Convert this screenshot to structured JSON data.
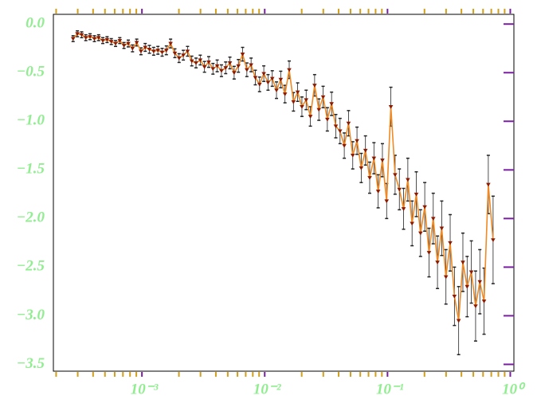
{
  "chart_data": {
    "type": "errorline",
    "x": [
      0.000275,
      0.000298,
      0.000323,
      0.000349,
      0.000378,
      0.00041,
      0.000444,
      0.00048,
      0.00052,
      0.000563,
      0.00061,
      0.00066,
      0.000714,
      0.000774,
      0.000838,
      0.000907,
      0.000982,
      0.001063,
      0.001151,
      0.001246,
      0.001349,
      0.001461,
      0.001581,
      0.001712,
      0.001854,
      0.002007,
      0.002173,
      0.002352,
      0.002547,
      0.002757,
      0.002985,
      0.003232,
      0.003499,
      0.003788,
      0.004102,
      0.004441,
      0.004808,
      0.005205,
      0.005636,
      0.006102,
      0.006607,
      0.007153,
      0.007745,
      0.008385,
      0.009078,
      0.009829,
      0.01064,
      0.01152,
      0.01247,
      0.0135,
      0.01462,
      0.01583,
      0.01714,
      0.01855,
      0.02009,
      0.02175,
      0.02355,
      0.02549,
      0.02761,
      0.02989,
      0.03236,
      0.03504,
      0.03793,
      0.04107,
      0.04446,
      0.04814,
      0.05212,
      0.05643,
      0.06109,
      0.06615,
      0.07161,
      0.07754,
      0.08395,
      0.09089,
      0.0984,
      0.1065,
      0.1153,
      0.1249,
      0.1352,
      0.1464,
      0.1585,
      0.1716,
      0.1858,
      0.2011,
      0.2178,
      0.2358,
      0.2553,
      0.2764,
      0.2992,
      0.3239,
      0.3508,
      0.3797,
      0.4111,
      0.4451,
      0.4819,
      0.5218,
      0.5649,
      0.6115,
      0.6622,
      0.7244
    ],
    "series": [
      {
        "line_color": "#f08a24",
        "marker_color": "#8b1a00",
        "error_color": "#222222",
        "values": [
          -0.15,
          -0.1,
          -0.11,
          -0.14,
          -0.13,
          -0.15,
          -0.14,
          -0.17,
          -0.16,
          -0.18,
          -0.2,
          -0.17,
          -0.22,
          -0.2,
          -0.25,
          -0.19,
          -0.28,
          -0.24,
          -0.26,
          -0.28,
          -0.27,
          -0.29,
          -0.27,
          -0.2,
          -0.3,
          -0.35,
          -0.32,
          -0.28,
          -0.38,
          -0.4,
          -0.37,
          -0.44,
          -0.39,
          -0.46,
          -0.43,
          -0.48,
          -0.45,
          -0.4,
          -0.5,
          -0.43,
          -0.31,
          -0.47,
          -0.42,
          -0.55,
          -0.62,
          -0.51,
          -0.6,
          -0.56,
          -0.68,
          -0.57,
          -0.72,
          -0.47,
          -0.8,
          -0.7,
          -0.85,
          -0.78,
          -0.95,
          -0.63,
          -0.88,
          -0.75,
          -0.98,
          -0.82,
          -1.05,
          -1.1,
          -1.25,
          -1.02,
          -1.35,
          -1.2,
          -1.48,
          -1.3,
          -1.58,
          -1.38,
          -1.72,
          -1.4,
          -1.82,
          -0.85,
          -1.55,
          -1.7,
          -1.9,
          -1.6,
          -2.05,
          -1.75,
          -2.15,
          -1.88,
          -2.35,
          -2.0,
          -2.45,
          -2.1,
          -2.6,
          -2.25,
          -2.8,
          -3.05,
          -2.45,
          -2.7,
          -2.55,
          -2.9,
          -2.65,
          -2.85,
          -1.65,
          -2.22
        ],
        "errors": [
          0.03,
          0.03,
          0.03,
          0.03,
          0.03,
          0.03,
          0.03,
          0.03,
          0.03,
          0.03,
          0.03,
          0.03,
          0.03,
          0.035,
          0.035,
          0.035,
          0.035,
          0.04,
          0.04,
          0.04,
          0.04,
          0.04,
          0.045,
          0.045,
          0.045,
          0.045,
          0.05,
          0.05,
          0.05,
          0.05,
          0.05,
          0.055,
          0.055,
          0.055,
          0.06,
          0.06,
          0.06,
          0.06,
          0.065,
          0.065,
          0.07,
          0.07,
          0.07,
          0.075,
          0.075,
          0.08,
          0.08,
          0.08,
          0.085,
          0.085,
          0.09,
          0.09,
          0.095,
          0.095,
          0.1,
          0.1,
          0.1,
          0.11,
          0.11,
          0.11,
          0.12,
          0.12,
          0.12,
          0.13,
          0.13,
          0.13,
          0.14,
          0.14,
          0.15,
          0.15,
          0.16,
          0.16,
          0.17,
          0.17,
          0.18,
          0.2,
          0.2,
          0.21,
          0.21,
          0.22,
          0.23,
          0.23,
          0.24,
          0.25,
          0.25,
          0.26,
          0.27,
          0.28,
          0.28,
          0.29,
          0.3,
          0.35,
          0.3,
          0.31,
          0.32,
          0.36,
          0.33,
          0.34,
          0.3,
          0.45
        ]
      }
    ],
    "xlim": [
      0.00019,
      1.07
    ],
    "log_x": true,
    "xticks": [
      {
        "value": 0.001,
        "label": "10⁻³"
      },
      {
        "value": 0.01,
        "label": "10⁻²"
      },
      {
        "value": 0.1,
        "label": "10⁻¹"
      },
      {
        "value": 1,
        "label": "10⁰"
      }
    ],
    "xminorticks": [
      0.0002,
      0.0003,
      0.0004,
      0.0005,
      0.0006,
      0.0007,
      0.0008,
      0.0009,
      0.002,
      0.003,
      0.004,
      0.005,
      0.006,
      0.007,
      0.008,
      0.009,
      0.02,
      0.03,
      0.04,
      0.05,
      0.06,
      0.07,
      0.08,
      0.09,
      0.2,
      0.3,
      0.4,
      0.5,
      0.6,
      0.7,
      0.8,
      0.9
    ],
    "ylim": [
      -3.57,
      0.1
    ],
    "yticks": [
      {
        "value": 0,
        "label": "0.0"
      },
      {
        "value": -0.5,
        "label": "−0.5"
      },
      {
        "value": -1,
        "label": "−1.0"
      },
      {
        "value": -1.5,
        "label": "−1.5"
      },
      {
        "value": -2,
        "label": "−2.0"
      },
      {
        "value": -2.5,
        "label": "−2.5"
      },
      {
        "value": -3,
        "label": "−3.0"
      },
      {
        "value": -3.5,
        "label": "−3.5"
      }
    ],
    "major_tick_color": "#7b1fa2",
    "minor_tick_color": "#d4a017"
  }
}
